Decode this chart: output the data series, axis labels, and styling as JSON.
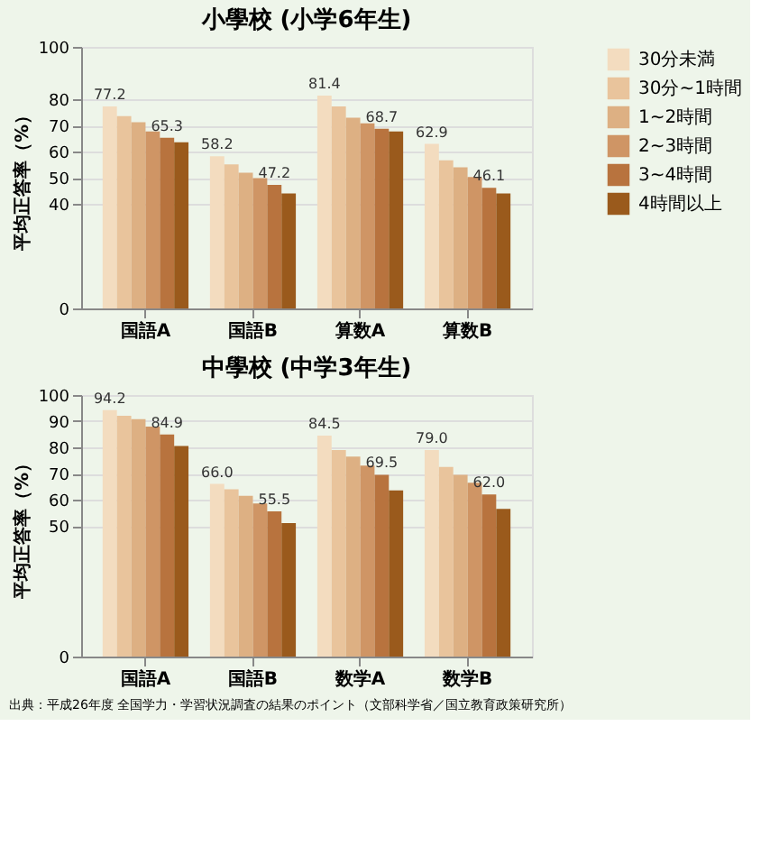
{
  "chart_data": [
    {
      "type": "bar",
      "title": "小學校 (小学6年生)",
      "ylabel": "平均正答率（%）",
      "categories": [
        "国語A",
        "国語B",
        "算数A",
        "算数B"
      ],
      "ylim": [
        0,
        100
      ],
      "yticks": [
        0,
        40,
        50,
        60,
        70,
        80,
        100
      ],
      "grid": "y",
      "legend": "right",
      "series": [
        {
          "name": "30分未満",
          "color": "#f3dcbf",
          "values": [
            77.2,
            58.2,
            81.4,
            62.9
          ],
          "value_labels": [
            "77.2",
            "58.2",
            "81.4",
            "62.9"
          ]
        },
        {
          "name": "30分~1時間",
          "color": "#e9c49c",
          "values": [
            73.5,
            55.1,
            77.2,
            56.6
          ]
        },
        {
          "name": "1~2時間",
          "color": "#ddb083",
          "values": [
            71.2,
            51.9,
            72.9,
            54.0
          ]
        },
        {
          "name": "2~3時間",
          "color": "#cf9565",
          "values": [
            67.7,
            49.8,
            70.8,
            50.3
          ]
        },
        {
          "name": "3~4時間",
          "color": "#b8733e",
          "values": [
            65.3,
            47.2,
            68.7,
            46.1
          ],
          "value_labels": [
            "65.3",
            "47.2",
            "68.7",
            "46.1"
          ]
        },
        {
          "name": "4時間以上",
          "color": "#9a5a1c",
          "values": [
            63.5,
            44.0,
            67.7,
            44.0
          ]
        }
      ]
    },
    {
      "type": "bar",
      "title": "中學校 (中学3年生)",
      "ylabel": "平均正答率（%）",
      "categories": [
        "国語A",
        "国語B",
        "数学A",
        "数学B"
      ],
      "ylim": [
        0,
        100
      ],
      "yticks": [
        0,
        50,
        60,
        70,
        80,
        90,
        100
      ],
      "grid": "y",
      "legend": "right",
      "annotations": [
        "出典：平成26年度 全国学力・学習状況調査の結果のポイント（文部科学省／国立教育政策研究所）"
      ],
      "series": [
        {
          "name": "30分未満",
          "color": "#f3dcbf",
          "values": [
            94.2,
            66.0,
            84.5,
            79.0
          ],
          "value_labels": [
            "94.2",
            "66.0",
            "84.5",
            "79.0"
          ]
        },
        {
          "name": "30分~1時間",
          "color": "#e9c49c",
          "values": [
            92.1,
            64.0,
            79.0,
            72.5
          ]
        },
        {
          "name": "1~2時間",
          "color": "#ddb083",
          "values": [
            90.8,
            61.5,
            76.5,
            69.5
          ]
        },
        {
          "name": "2~3時間",
          "color": "#cf9565",
          "values": [
            87.9,
            58.5,
            73.0,
            66.5
          ]
        },
        {
          "name": "3~4時間",
          "color": "#b8733e",
          "values": [
            84.9,
            55.5,
            69.5,
            62.0
          ],
          "value_labels": [
            "84.9",
            "55.5",
            "69.5",
            "62.0"
          ]
        },
        {
          "name": "4時間以上",
          "color": "#9a5a1c",
          "values": [
            80.5,
            51.0,
            63.5,
            56.5
          ]
        }
      ]
    }
  ]
}
